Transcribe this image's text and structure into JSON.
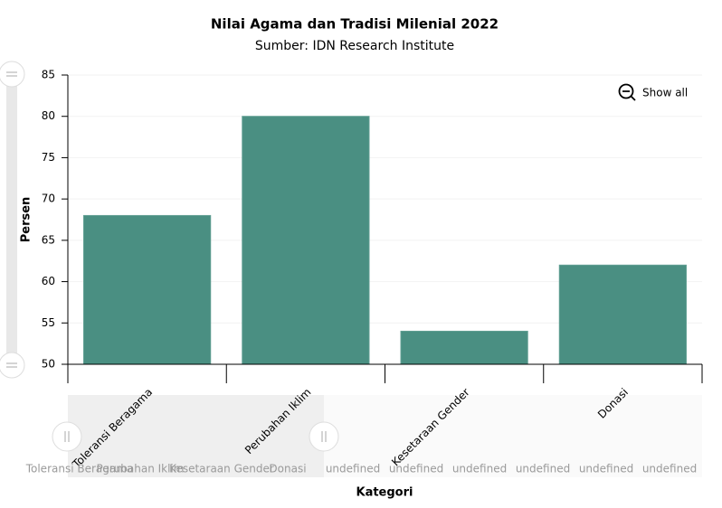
{
  "chart_data": {
    "type": "bar",
    "title": "Nilai Agama dan Tradisi Milenial 2022",
    "subtitle": "Sumber: IDN Research Institute",
    "x_label": "Kategori",
    "y_label": "Persen",
    "categories": [
      "Toleransi Beragama",
      "Perubahan Iklim",
      "Kesetaraan Gender",
      "Donasi"
    ],
    "values": [
      68,
      80,
      54,
      62
    ],
    "color": "#4a8f82",
    "ylim": [
      50,
      85
    ],
    "yticks": [
      50,
      55,
      60,
      65,
      70,
      75,
      80,
      85
    ],
    "grid": true,
    "zoom_button": "Show all",
    "scrollbar_labels": [
      "Toleransi Beragama",
      "Perubahan Iklim",
      "Kesetaraan Gender",
      "Donasi",
      "undefined",
      "undefined",
      "undefined",
      "undefined",
      "undefined",
      "undefined"
    ]
  }
}
